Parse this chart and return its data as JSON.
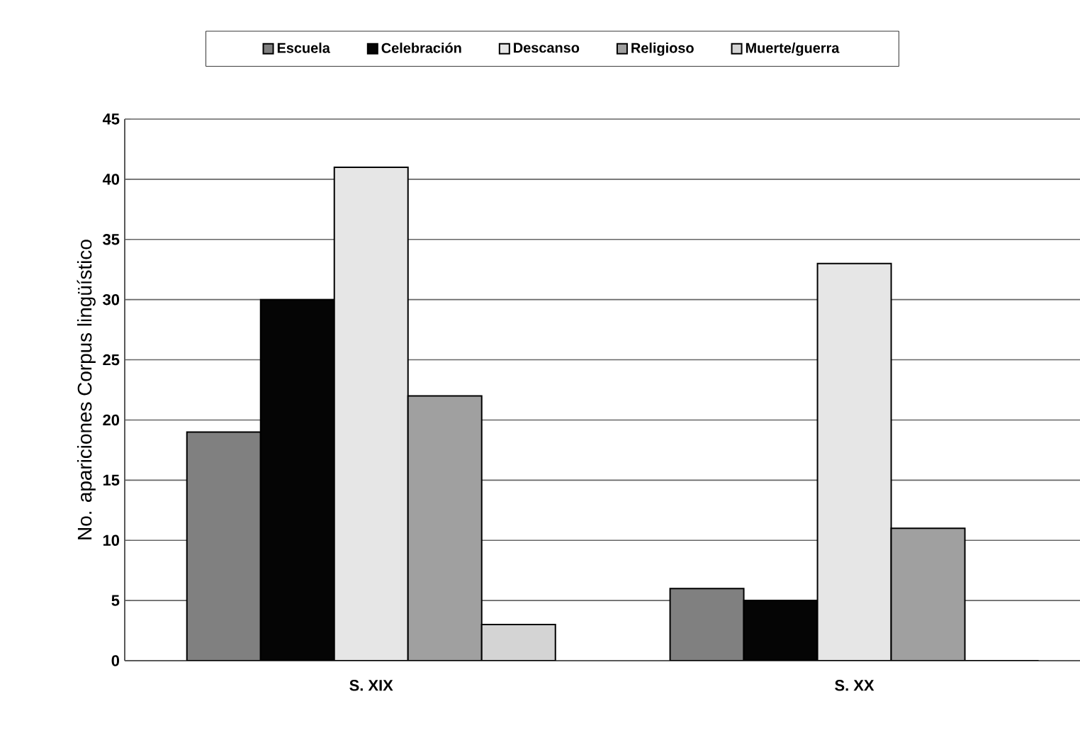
{
  "chart_data": {
    "type": "bar",
    "ylabel": "No. apariciones Corpus lingüístico",
    "categories": [
      "S. XIX",
      "S. XX"
    ],
    "series": [
      {
        "name": "Escuela",
        "color": "#808080",
        "values": [
          19,
          6
        ]
      },
      {
        "name": "Celebración",
        "color": "#050505",
        "values": [
          30,
          5
        ]
      },
      {
        "name": "Descanso",
        "color": "#e6e6e6",
        "values": [
          41,
          33
        ]
      },
      {
        "name": "Religioso",
        "color": "#a0a0a0",
        "values": [
          22,
          11
        ]
      },
      {
        "name": "Muerte/guerra",
        "color": "#d4d4d4",
        "values": [
          3,
          0
        ]
      }
    ],
    "ylim": [
      0,
      45
    ],
    "yticks": [
      0,
      5,
      10,
      15,
      20,
      25,
      30,
      35,
      40,
      45
    ],
    "grid": "y",
    "legend": "top"
  }
}
